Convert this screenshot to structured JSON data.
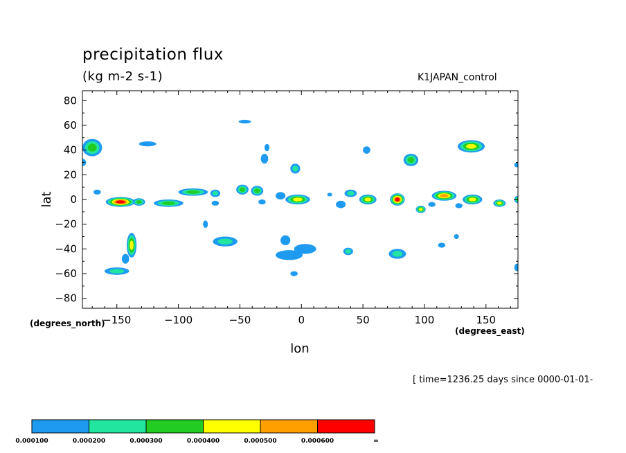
{
  "header": {
    "title": "precipitation flux",
    "units": "(kg m-2 s-1)",
    "run_label": "K1JAPAN_control"
  },
  "footer": {
    "time_info": "[ time=1236.25 days since 0000-01-01-"
  },
  "colors": {
    "levels": [
      "#1e9bf0",
      "#22e6a0",
      "#22cc22",
      "#ffff00",
      "#ff9f00",
      "#ff0000"
    ]
  },
  "chart_data": {
    "type": "heatmap",
    "title": "precipitation flux",
    "subtitle": "(kg m-2 s-1)",
    "xlabel": "lon",
    "ylabel": "lat",
    "x_unit_note": "(degrees_east)",
    "y_unit_note": "(degrees_north)",
    "xlim": [
      -178,
      176
    ],
    "ylim": [
      -88,
      88
    ],
    "x_ticks": [
      -150,
      -100,
      -50,
      0,
      50,
      100,
      150
    ],
    "y_ticks": [
      80,
      60,
      40,
      20,
      0,
      -20,
      -40,
      -60,
      -80
    ],
    "colorbar": {
      "levels": [
        "0.000100",
        "0.000200",
        "0.000300",
        "0.000400",
        "0.000500",
        "0.000600",
        "∞"
      ],
      "colors": [
        "#1e9bf0",
        "#22e6a0",
        "#22cc22",
        "#ffff00",
        "#ff9f00",
        "#ff0000"
      ]
    },
    "blobs": [
      {
        "lon": -170,
        "lat": 42,
        "rx": 8,
        "ry": 7,
        "level": 2
      },
      {
        "lon": -178,
        "lat": 30,
        "rx": 3,
        "ry": 3,
        "level": 0
      },
      {
        "lon": -166,
        "lat": 6,
        "rx": 3,
        "ry": 2,
        "level": 0
      },
      {
        "lon": -147,
        "lat": -2,
        "rx": 12,
        "ry": 4,
        "level": 5
      },
      {
        "lon": -132,
        "lat": -2,
        "rx": 5,
        "ry": 3,
        "level": 2
      },
      {
        "lon": -138,
        "lat": -37,
        "rx": 4,
        "ry": 10,
        "level": 3
      },
      {
        "lon": -143,
        "lat": -48,
        "rx": 3,
        "ry": 4,
        "level": 0
      },
      {
        "lon": -150,
        "lat": -58,
        "rx": 10,
        "ry": 3,
        "level": 1
      },
      {
        "lon": -125,
        "lat": 45,
        "rx": 7,
        "ry": 2,
        "level": 0
      },
      {
        "lon": -108,
        "lat": -3,
        "rx": 12,
        "ry": 3,
        "level": 2
      },
      {
        "lon": -88,
        "lat": 6,
        "rx": 12,
        "ry": 3,
        "level": 2
      },
      {
        "lon": -70,
        "lat": 5,
        "rx": 4,
        "ry": 3,
        "level": 1
      },
      {
        "lon": -70,
        "lat": -3,
        "rx": 3,
        "ry": 2,
        "level": 0
      },
      {
        "lon": -78,
        "lat": -20,
        "rx": 2,
        "ry": 3,
        "level": 0
      },
      {
        "lon": -62,
        "lat": -34,
        "rx": 10,
        "ry": 4,
        "level": 1
      },
      {
        "lon": -48,
        "lat": 8,
        "rx": 5,
        "ry": 4,
        "level": 2
      },
      {
        "lon": -36,
        "lat": 7,
        "rx": 5,
        "ry": 4,
        "level": 2
      },
      {
        "lon": -32,
        "lat": -2,
        "rx": 3,
        "ry": 2,
        "level": 0
      },
      {
        "lon": -46,
        "lat": 63,
        "rx": 5,
        "ry": 1.5,
        "level": 0
      },
      {
        "lon": -30,
        "lat": 33,
        "rx": 3,
        "ry": 4,
        "level": 0
      },
      {
        "lon": -28,
        "lat": 42,
        "rx": 2,
        "ry": 3,
        "level": 0
      },
      {
        "lon": -17,
        "lat": 3,
        "rx": 4,
        "ry": 3,
        "level": 0
      },
      {
        "lon": -5,
        "lat": 25,
        "rx": 4,
        "ry": 4,
        "level": 1
      },
      {
        "lon": -3,
        "lat": 0,
        "rx": 10,
        "ry": 4,
        "level": 3
      },
      {
        "lon": -10,
        "lat": -45,
        "rx": 11,
        "ry": 4,
        "level": 0
      },
      {
        "lon": 3,
        "lat": -40,
        "rx": 9,
        "ry": 4,
        "level": 0
      },
      {
        "lon": -13,
        "lat": -33,
        "rx": 4,
        "ry": 4,
        "level": 0
      },
      {
        "lon": -6,
        "lat": -60,
        "rx": 3,
        "ry": 2,
        "level": 0
      },
      {
        "lon": 23,
        "lat": 4,
        "rx": 2,
        "ry": 1.5,
        "level": 0
      },
      {
        "lon": 32,
        "lat": -4,
        "rx": 4,
        "ry": 3,
        "level": 0
      },
      {
        "lon": 40,
        "lat": 5,
        "rx": 5,
        "ry": 3,
        "level": 1
      },
      {
        "lon": 54,
        "lat": 0,
        "rx": 7,
        "ry": 4,
        "level": 3
      },
      {
        "lon": 53,
        "lat": 40,
        "rx": 3,
        "ry": 3,
        "level": 0
      },
      {
        "lon": 38,
        "lat": -42,
        "rx": 4,
        "ry": 3,
        "level": 1
      },
      {
        "lon": 78,
        "lat": 0,
        "rx": 6,
        "ry": 5,
        "level": 5
      },
      {
        "lon": 78,
        "lat": -44,
        "rx": 7,
        "ry": 4,
        "level": 1
      },
      {
        "lon": 89,
        "lat": 32,
        "rx": 6,
        "ry": 5,
        "level": 2
      },
      {
        "lon": 97,
        "lat": -8,
        "rx": 4,
        "ry": 3,
        "level": 3
      },
      {
        "lon": 106,
        "lat": -4,
        "rx": 3,
        "ry": 2,
        "level": 0
      },
      {
        "lon": 116,
        "lat": 3,
        "rx": 10,
        "ry": 4,
        "level": 4
      },
      {
        "lon": 114,
        "lat": -37,
        "rx": 3,
        "ry": 2,
        "level": 0
      },
      {
        "lon": 138,
        "lat": 43,
        "rx": 11,
        "ry": 5,
        "level": 3
      },
      {
        "lon": 128,
        "lat": -5,
        "rx": 3,
        "ry": 2,
        "level": 0
      },
      {
        "lon": 139,
        "lat": 0,
        "rx": 8,
        "ry": 4,
        "level": 3
      },
      {
        "lon": 126,
        "lat": -30,
        "rx": 2,
        "ry": 2,
        "level": 0
      },
      {
        "lon": 161,
        "lat": -3,
        "rx": 5,
        "ry": 3,
        "level": 3
      },
      {
        "lon": 176,
        "lat": 0,
        "rx": 3,
        "ry": 3,
        "level": 2
      },
      {
        "lon": 175,
        "lat": -55,
        "rx": 2,
        "ry": 3,
        "level": 0
      },
      {
        "lon": 175,
        "lat": 28,
        "rx": 2,
        "ry": 2,
        "level": 0
      }
    ]
  }
}
